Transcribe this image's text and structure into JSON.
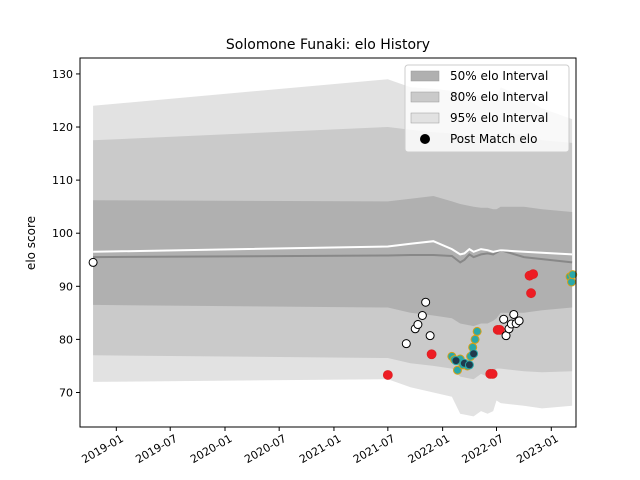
{
  "chart_data": {
    "type": "scatter",
    "title": "Solomone Funaki: elo History",
    "xlabel": "",
    "ylabel": "elo score",
    "xlim": [
      "2018-09-01",
      "2023-03-25"
    ],
    "ylim": [
      63.5,
      133
    ],
    "x_ticks": [
      "2019-01",
      "2019-07",
      "2020-01",
      "2020-07",
      "2021-01",
      "2021-07",
      "2022-01",
      "2022-07",
      "2023-01"
    ],
    "y_ticks": [
      70,
      80,
      90,
      100,
      110,
      120,
      130
    ],
    "grid": false,
    "legend_position": "top-right",
    "legend": [
      {
        "label": "50% elo Interval",
        "color": "#b0b0b0"
      },
      {
        "label": "80% elo Interval",
        "color": "#cacaca"
      },
      {
        "label": "95% elo Interval",
        "color": "#e2e2e2"
      },
      {
        "label": "Post Match elo",
        "color": "#000000"
      }
    ],
    "bands": {
      "x": [
        "2018-10-15",
        "2021-07-01",
        "2021-09-15",
        "2021-12-01",
        "2022-02-01",
        "2022-03-01",
        "2022-04-15",
        "2022-05-10",
        "2022-06-01",
        "2022-06-20",
        "2022-07-01",
        "2022-07-15",
        "2022-10-01",
        "2022-12-01",
        "2023-03-12"
      ],
      "p95": {
        "upper": [
          124.0,
          129.0,
          127.5,
          127.2,
          126.8,
          126.5,
          126.2,
          125.8,
          125.8,
          125.6,
          125.5,
          127.5,
          125.5,
          123.5,
          121.5
        ],
        "lower": [
          72.0,
          72.5,
          71.0,
          70.0,
          69.2,
          66.0,
          65.5,
          66.5,
          66.0,
          66.5,
          68.5,
          68.0,
          67.5,
          67.0,
          67.5
        ]
      },
      "p80": {
        "upper": [
          117.5,
          120.0,
          119.5,
          119.0,
          118.8,
          118.5,
          118.3,
          118.0,
          118.0,
          117.8,
          117.8,
          119.0,
          118.5,
          117.5,
          117.0
        ],
        "lower": [
          77.0,
          76.5,
          75.5,
          75.0,
          74.5,
          73.0,
          72.5,
          73.5,
          73.0,
          73.5,
          74.5,
          74.5,
          74.0,
          73.8,
          74.0
        ]
      },
      "p50": {
        "upper": [
          106.2,
          106.0,
          106.5,
          107.0,
          106.0,
          105.5,
          105.0,
          104.8,
          104.8,
          104.5,
          104.5,
          105.0,
          105.0,
          104.5,
          104.0
        ],
        "lower": [
          86.5,
          86.0,
          85.0,
          84.5,
          84.0,
          83.0,
          82.5,
          83.0,
          83.0,
          83.5,
          84.0,
          85.0,
          85.0,
          85.5,
          86.0
        ]
      }
    },
    "median_line": {
      "x": [
        "2018-10-15",
        "2021-07-01",
        "2021-09-15",
        "2021-12-01",
        "2022-02-01",
        "2022-03-01",
        "2022-03-15",
        "2022-04-01",
        "2022-04-15",
        "2022-05-10",
        "2022-06-01",
        "2022-06-20",
        "2022-07-15",
        "2022-10-01",
        "2023-03-12"
      ],
      "y": [
        95.5,
        95.8,
        95.9,
        95.9,
        95.7,
        94.5,
        95.0,
        96.0,
        95.5,
        96.0,
        96.2,
        96.0,
        96.8,
        95.5,
        94.5
      ]
    },
    "white_line": {
      "x": [
        "2018-10-15",
        "2021-07-01",
        "2021-09-15",
        "2021-12-01",
        "2022-02-01",
        "2022-03-01",
        "2022-03-15",
        "2022-04-01",
        "2022-04-15",
        "2022-05-10",
        "2022-06-01",
        "2022-06-20",
        "2022-07-15",
        "2022-10-01",
        "2023-03-12"
      ],
      "y": [
        96.5,
        97.5,
        98.0,
        98.5,
        97.0,
        96.0,
        96.2,
        97.0,
        96.5,
        97.0,
        96.8,
        96.5,
        96.8,
        96.5,
        96.0
      ]
    },
    "post_match": [
      {
        "x": "2018-10-15",
        "y": 94.5
      },
      {
        "x": "2021-09-01",
        "y": 79.2
      },
      {
        "x": "2021-10-01",
        "y": 82.0
      },
      {
        "x": "2021-10-10",
        "y": 82.8
      },
      {
        "x": "2021-10-25",
        "y": 84.5
      },
      {
        "x": "2021-11-05",
        "y": 87.0
      },
      {
        "x": "2021-11-20",
        "y": 80.7
      },
      {
        "x": "2022-07-25",
        "y": 83.8
      },
      {
        "x": "2022-08-02",
        "y": 80.7
      },
      {
        "x": "2022-08-12",
        "y": 82.0
      },
      {
        "x": "2022-08-20",
        "y": 82.9
      },
      {
        "x": "2022-08-28",
        "y": 84.7
      },
      {
        "x": "2022-09-05",
        "y": 83.0
      },
      {
        "x": "2022-09-15",
        "y": 83.5
      }
    ],
    "red_points": [
      {
        "x": "2021-07-01",
        "y": 73.3
      },
      {
        "x": "2021-11-25",
        "y": 77.2
      },
      {
        "x": "2022-06-10",
        "y": 73.5
      },
      {
        "x": "2022-06-18",
        "y": 73.5
      },
      {
        "x": "2022-07-05",
        "y": 81.8
      },
      {
        "x": "2022-07-12",
        "y": 81.8
      },
      {
        "x": "2022-10-20",
        "y": 92.0
      },
      {
        "x": "2022-10-25",
        "y": 88.7
      },
      {
        "x": "2022-11-01",
        "y": 92.3
      }
    ],
    "teal_points": [
      {
        "x": "2022-02-01",
        "y": 76.8
      },
      {
        "x": "2022-02-10",
        "y": 76.2
      },
      {
        "x": "2022-02-20",
        "y": 74.2
      },
      {
        "x": "2022-03-01",
        "y": 76.3
      },
      {
        "x": "2022-03-10",
        "y": 75.2
      },
      {
        "x": "2022-03-25",
        "y": 75.0
      },
      {
        "x": "2022-04-05",
        "y": 76.8
      },
      {
        "x": "2022-04-12",
        "y": 78.5
      },
      {
        "x": "2022-04-20",
        "y": 80.0
      },
      {
        "x": "2022-04-27",
        "y": 81.5
      },
      {
        "x": "2023-03-05",
        "y": 91.8
      },
      {
        "x": "2023-03-10",
        "y": 90.8
      },
      {
        "x": "2023-03-14",
        "y": 92.2
      }
    ],
    "navy_points": [
      {
        "x": "2022-02-15",
        "y": 76.0
      },
      {
        "x": "2022-03-15",
        "y": 75.5
      },
      {
        "x": "2022-04-01",
        "y": 75.2
      },
      {
        "x": "2022-04-15",
        "y": 77.3
      }
    ]
  }
}
